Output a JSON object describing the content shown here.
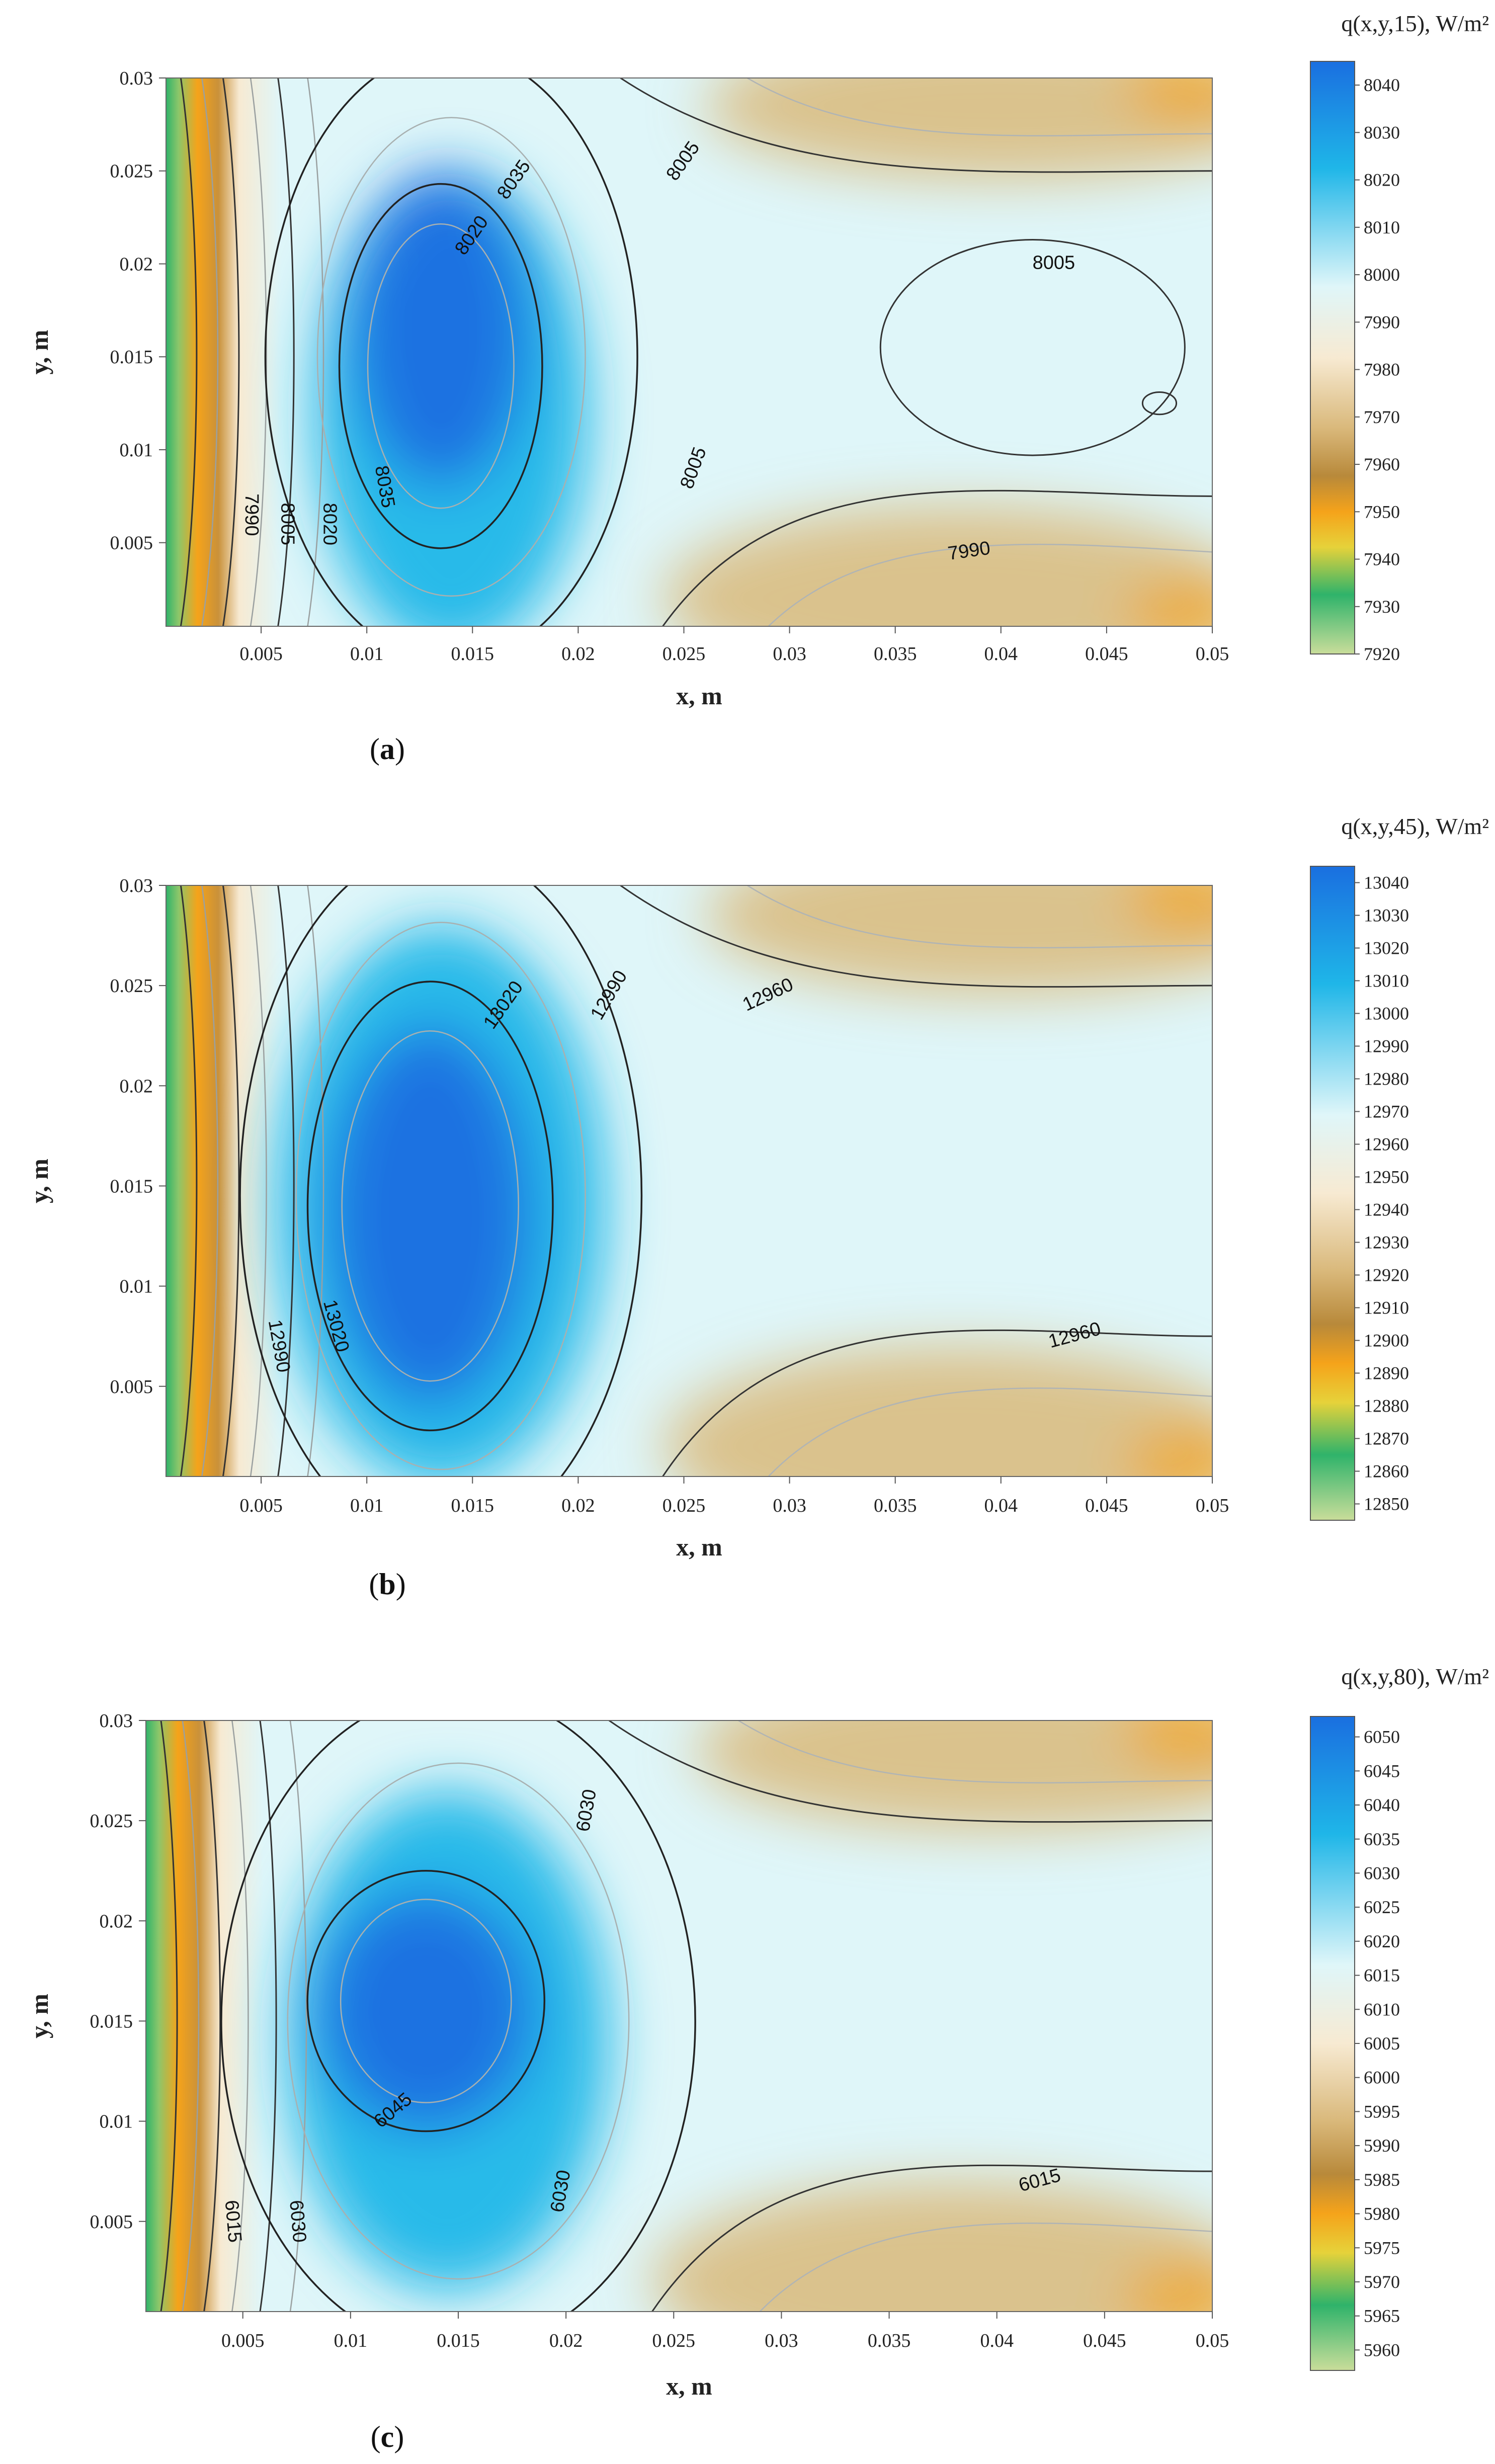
{
  "panels": [
    {
      "id": "a",
      "caption": {
        "open": "(",
        "letter": "a",
        "close": ")"
      },
      "colorbar_title": "q(x,y,15), W/m²",
      "colorbar_ticks": [
        "8040",
        "8030",
        "8020",
        "8010",
        "8000",
        "7990",
        "7980",
        "7970",
        "7960",
        "7950",
        "7940",
        "7930",
        "7920"
      ],
      "contour_labels": [
        "7990",
        "8005",
        "8020",
        "8035",
        "8020",
        "8035",
        "8005",
        "8005",
        "8005",
        "7990"
      ]
    },
    {
      "id": "b",
      "caption": {
        "open": "(",
        "letter": "b",
        "close": ")"
      },
      "colorbar_title": "q(x,y,45), W/m²",
      "colorbar_ticks": [
        "13040",
        "13030",
        "13020",
        "13010",
        "13000",
        "12990",
        "12980",
        "12970",
        "12960",
        "12950",
        "12940",
        "12930",
        "12920",
        "12910",
        "12900",
        "12890",
        "12880",
        "12870",
        "12860",
        "12850"
      ],
      "contour_labels": [
        "13020",
        "12990",
        "12960",
        "12990",
        "13020",
        "12960"
      ]
    },
    {
      "id": "c",
      "caption": {
        "open": "(",
        "letter": "c",
        "close": ")"
      },
      "colorbar_title": "q(x,y,80), W/m²",
      "colorbar_ticks": [
        "6050",
        "6045",
        "6040",
        "6035",
        "6030",
        "6025",
        "6020",
        "6015",
        "6010",
        "6005",
        "6000",
        "5995",
        "5990",
        "5985",
        "5980",
        "5975",
        "5970",
        "5965",
        "5960"
      ],
      "contour_labels": [
        "6030",
        "6045",
        "6015",
        "6030",
        "6030",
        "6015"
      ]
    }
  ],
  "chart_data": [
    {
      "type": "heatmap",
      "title": "q(x,y,15), W/m²",
      "xlabel": "x, m",
      "ylabel": "y, m",
      "xlim": [
        0.0005,
        0.05
      ],
      "ylim": [
        0.0005,
        0.03
      ],
      "x_ticks": [
        "0.005",
        "0.01",
        "0.015",
        "0.02",
        "0.025",
        "0.03",
        "0.035",
        "0.04",
        "0.045",
        "0.05"
      ],
      "y_ticks": [
        "0.005",
        "0.01",
        "0.015",
        "0.02",
        "0.025",
        "0.03"
      ],
      "colorbar_range": [
        7920,
        8045
      ],
      "contour_levels": [
        7990,
        8005,
        8020,
        8035
      ],
      "hot_spot": {
        "x": 0.0135,
        "y": 0.016,
        "value": 8045
      }
    },
    {
      "type": "heatmap",
      "title": "q(x,y,45), W/m²",
      "xlabel": "x, m",
      "ylabel": "y, m",
      "xlim": [
        0.0005,
        0.05
      ],
      "ylim": [
        0.0005,
        0.03
      ],
      "x_ticks": [
        "0.005",
        "0.01",
        "0.015",
        "0.02",
        "0.025",
        "0.03",
        "0.035",
        "0.04",
        "0.045",
        "0.05"
      ],
      "y_ticks": [
        "0.005",
        "0.01",
        "0.015",
        "0.02",
        "0.025",
        "0.03"
      ],
      "colorbar_range": [
        12845,
        13045
      ],
      "contour_levels": [
        12960,
        12990,
        13020
      ],
      "hot_spot": {
        "x": 0.013,
        "y": 0.0135,
        "value": 13040
      }
    },
    {
      "type": "heatmap",
      "title": "q(x,y,80), W/m²",
      "xlabel": "x, m",
      "ylabel": "y, m",
      "xlim": [
        0.0005,
        0.05
      ],
      "ylim": [
        0.0005,
        0.03
      ],
      "x_ticks": [
        "0.005",
        "0.01",
        "0.015",
        "0.02",
        "0.025",
        "0.03",
        "0.035",
        "0.04",
        "0.045",
        "0.05"
      ],
      "y_ticks": [
        "0.005",
        "0.01",
        "0.015",
        "0.02",
        "0.025",
        "0.03"
      ],
      "colorbar_range": [
        5957,
        6053
      ],
      "contour_levels": [
        6015,
        6030,
        6045
      ],
      "hot_spot": {
        "x": 0.0135,
        "y": 0.0155,
        "value": 6052
      }
    }
  ],
  "colors": {
    "hot": "#1a6fe0",
    "cyan": "#1fb6e8",
    "pale_cyan": "#dff6f9",
    "cream": "#f7ead2",
    "tan": "#d9b87a",
    "orange": "#f5a31a",
    "green": "#2fb36a",
    "pale_green": "#c9dd9a"
  }
}
